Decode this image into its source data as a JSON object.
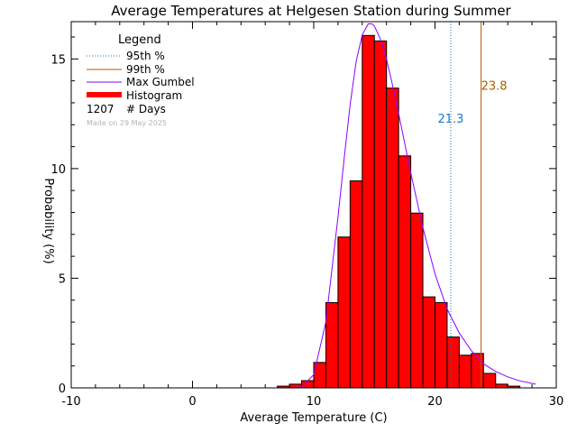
{
  "chart_data": {
    "type": "bar",
    "title": "Average Temperatures at Helgesen Station during Summer",
    "xlabel": "Average Temperature (C)",
    "ylabel": "Probability (%)",
    "xlim": [
      -10,
      30
    ],
    "ylim": [
      0,
      16.7
    ],
    "x_ticks": [
      "-10",
      "0",
      "10",
      "20",
      "30"
    ],
    "y_ticks": [
      "0",
      "5",
      "10",
      "15"
    ],
    "bin_width": 1,
    "histogram": {
      "name": "Histogram",
      "color": "#ff0000",
      "bins_left": [
        7,
        8,
        9,
        10,
        11,
        12,
        13,
        14,
        15,
        16,
        17,
        18,
        19,
        20,
        21,
        22,
        23,
        24,
        25,
        26
      ],
      "values": [
        0.08,
        0.17,
        0.33,
        1.16,
        3.89,
        6.88,
        9.44,
        16.07,
        15.82,
        13.67,
        10.58,
        7.97,
        4.15,
        3.89,
        2.32,
        1.49,
        1.57,
        0.66,
        0.17,
        0.08
      ]
    },
    "gumbel": {
      "name": "Max Gumbel",
      "color": "#8a00ff",
      "x": [
        8.0,
        9.0,
        10.0,
        11.0,
        12.0,
        12.5,
        13.0,
        13.5,
        14.0,
        14.5,
        14.8,
        15.0,
        15.5,
        16.0,
        16.5,
        17.0,
        18.0,
        19.0,
        20.0,
        21.0,
        22.0,
        23.0,
        24.0,
        25.0,
        26.0,
        27.0,
        28.3
      ],
      "y": [
        0.0,
        0.05,
        0.6,
        3.0,
        7.8,
        10.4,
        12.9,
        14.9,
        16.1,
        16.6,
        16.6,
        16.5,
        15.9,
        15.0,
        13.8,
        12.5,
        9.8,
        7.3,
        5.2,
        3.6,
        2.5,
        1.7,
        1.1,
        0.75,
        0.5,
        0.32,
        0.17
      ]
    },
    "percentile_95": {
      "name": "95th %",
      "value": 21.3,
      "label": "21.3",
      "color": "#1f77c8",
      "label_y": 12.1
    },
    "percentile_99": {
      "name": "99th %",
      "value": 23.8,
      "label": "23.8",
      "color": "#b35a00",
      "label_y": 13.6
    },
    "legend": {
      "title": "Legend",
      "placement": "top-left",
      "items": [
        "95th %",
        "99th %",
        "Max Gumbel",
        "Histogram"
      ],
      "days_count": "1207",
      "days_label": "# Days",
      "made_on": "Made on 29 May 2025"
    },
    "grid": false
  }
}
